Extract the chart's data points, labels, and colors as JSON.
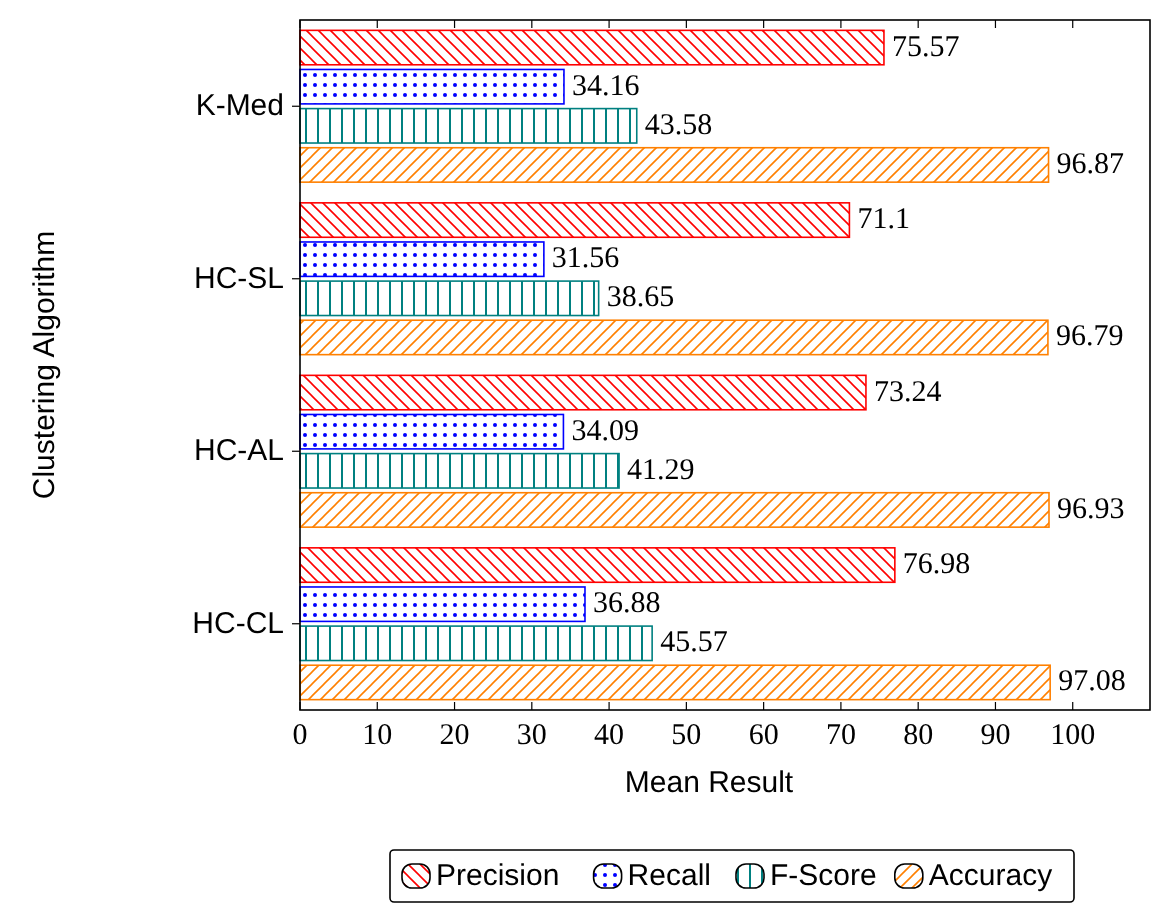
{
  "chart_data": {
    "type": "bar",
    "orientation": "horizontal",
    "xlabel": "Mean Result",
    "ylabel": "Clustering Algorithm",
    "categories": [
      "K-Med",
      "HC-SL",
      "HC-AL",
      "HC-CL"
    ],
    "series": [
      {
        "name": "Precision",
        "color": "#ff0000",
        "values": [
          75.57,
          71.1,
          73.24,
          76.98
        ]
      },
      {
        "name": "Recall",
        "color": "#0000ff",
        "values": [
          34.16,
          31.56,
          34.09,
          36.88
        ]
      },
      {
        "name": "F-Score",
        "color": "#008080",
        "values": [
          43.58,
          38.65,
          41.29,
          45.57
        ]
      },
      {
        "name": "Accuracy",
        "color": "#ff8000",
        "values": [
          96.87,
          96.79,
          96.93,
          97.08
        ]
      }
    ],
    "xlim": [
      0,
      110
    ],
    "xticks": [
      0,
      10,
      20,
      30,
      40,
      50,
      60,
      70,
      80,
      90,
      100
    ],
    "data_labels": true,
    "legend": "bottom",
    "grid": false
  }
}
